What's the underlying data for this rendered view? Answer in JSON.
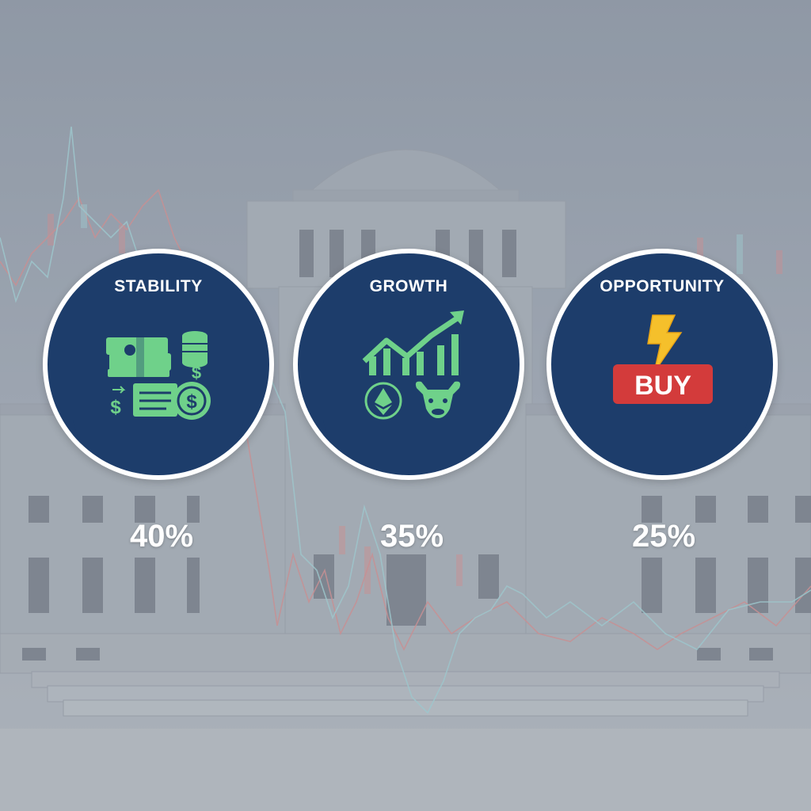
{
  "segments": [
    {
      "id": "stability",
      "label": "STABILITY",
      "percent": "40%",
      "share": 0.4,
      "icons": [
        "cash-stack-icon",
        "coin-stack-icon",
        "dollar-coin-icon",
        "transfer-dollar-icon"
      ]
    },
    {
      "id": "growth",
      "label": "GROWTH",
      "percent": "35%",
      "share": 0.35,
      "icons": [
        "growth-chart-icon",
        "ethereum-coin-icon",
        "bull-icon"
      ]
    },
    {
      "id": "opportunity",
      "label": "OPPORTUNITY",
      "percent": "25%",
      "share": 0.25,
      "icons": [
        "lightning-icon",
        "buy-badge-icon"
      ]
    }
  ],
  "buy_badge_text": "BUY",
  "colors": {
    "circle_fill": "#1d3d6b",
    "ring": "#ffffff",
    "accent_green": "#6fd18a",
    "buy_red": "#d33b3b",
    "lightning": "#f5c02b",
    "background_overlay": "#8f9aa6"
  }
}
